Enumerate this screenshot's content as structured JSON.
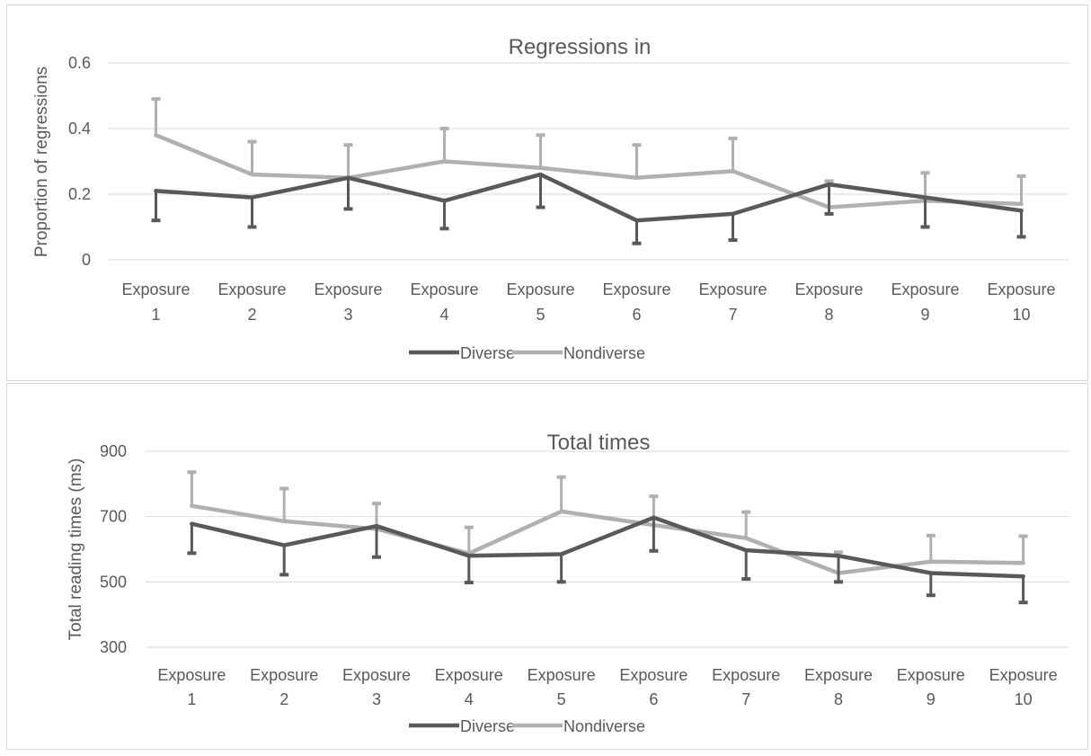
{
  "chart_data": [
    {
      "type": "line",
      "title": "Regressions in",
      "xlabel": "",
      "ylabel": "Proportion of regressions",
      "categories": [
        "Exposure 1",
        "Exposure 2",
        "Exposure 3",
        "Exposure 4",
        "Exposure 5",
        "Exposure 6",
        "Exposure 7",
        "Exposure 8",
        "Exposure 9",
        "Exposure 10"
      ],
      "ylim": [
        0,
        0.6
      ],
      "yticks": [
        "0",
        "0.2",
        "0.4",
        "0.6"
      ],
      "grid": true,
      "legend": "bottom",
      "series": [
        {
          "name": "Diverse",
          "color": "#595959",
          "values": [
            0.21,
            0.19,
            0.25,
            0.18,
            0.26,
            0.12,
            0.14,
            0.23,
            0.19,
            0.15
          ],
          "error": [
            0.09,
            0.09,
            0.095,
            0.085,
            0.1,
            0.07,
            0.08,
            0.09,
            0.09,
            0.08
          ],
          "error_dir": "down"
        },
        {
          "name": "Nondiverse",
          "color": "#b0b0b0",
          "values": [
            0.38,
            0.26,
            0.25,
            0.3,
            0.28,
            0.25,
            0.27,
            0.16,
            0.18,
            0.17
          ],
          "error": [
            0.11,
            0.1,
            0.1,
            0.1,
            0.1,
            0.1,
            0.1,
            0.08,
            0.085,
            0.085
          ],
          "error_dir": "up"
        }
      ]
    },
    {
      "type": "line",
      "title": "Total times",
      "xlabel": "",
      "ylabel": "Total reading times (ms)",
      "categories": [
        "Exposure 1",
        "Exposure 2",
        "Exposure 3",
        "Exposure 4",
        "Exposure 5",
        "Exposure 6",
        "Exposure 7",
        "Exposure 8",
        "Exposure 9",
        "Exposure 10"
      ],
      "ylim": [
        300,
        900
      ],
      "yticks": [
        "300",
        "500",
        "700",
        "900"
      ],
      "grid": true,
      "legend": "bottom",
      "series": [
        {
          "name": "Diverse",
          "color": "#595959",
          "values": [
            678,
            612,
            671,
            580,
            585,
            697,
            597,
            580,
            527,
            517
          ],
          "error": [
            90,
            90,
            95,
            82,
            85,
            102,
            88,
            80,
            68,
            80
          ],
          "error_dir": "down"
        },
        {
          "name": "Nondiverse",
          "color": "#b0b0b0",
          "values": [
            733,
            686,
            662,
            587,
            716,
            674,
            634,
            527,
            562,
            558
          ],
          "error": [
            103,
            100,
            78,
            80,
            105,
            88,
            80,
            64,
            80,
            82
          ],
          "error_dir": "up"
        }
      ]
    }
  ]
}
